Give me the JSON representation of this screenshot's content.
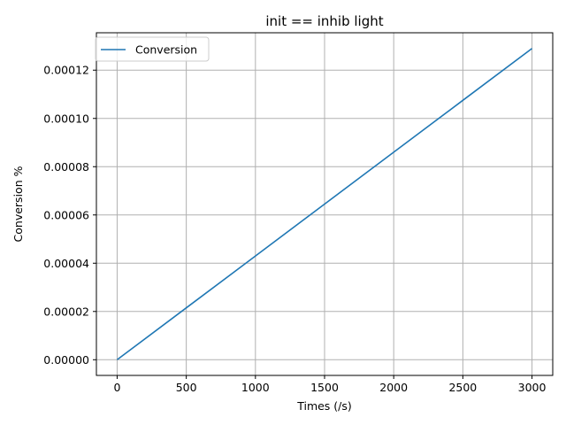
{
  "chart_data": {
    "type": "line",
    "title": "init == inhib light",
    "xlabel": "Times (/s)",
    "ylabel": "Conversion %",
    "xlim": [
      -150,
      3150
    ],
    "ylim": [
      -6.5e-06,
      0.0001355
    ],
    "xticks": [
      0,
      500,
      1000,
      1500,
      2000,
      2500,
      3000
    ],
    "xtick_labels": [
      "0",
      "500",
      "1000",
      "1500",
      "2000",
      "2500",
      "3000"
    ],
    "yticks": [
      0,
      2e-05,
      4e-05,
      6e-05,
      8e-05,
      0.0001,
      0.00012
    ],
    "ytick_labels": [
      "0.00000",
      "0.00002",
      "0.00004",
      "0.00006",
      "0.00008",
      "0.00010",
      "0.00012"
    ],
    "grid": true,
    "legend": "upper-left",
    "series": [
      {
        "name": "Conversion",
        "color": "#1f77b4",
        "x": [
          0,
          500,
          1000,
          1500,
          2000,
          2500,
          3000
        ],
        "y": [
          0,
          2.15e-05,
          4.3e-05,
          6.45e-05,
          8.6e-05,
          0.0001075,
          0.000129
        ]
      }
    ]
  }
}
